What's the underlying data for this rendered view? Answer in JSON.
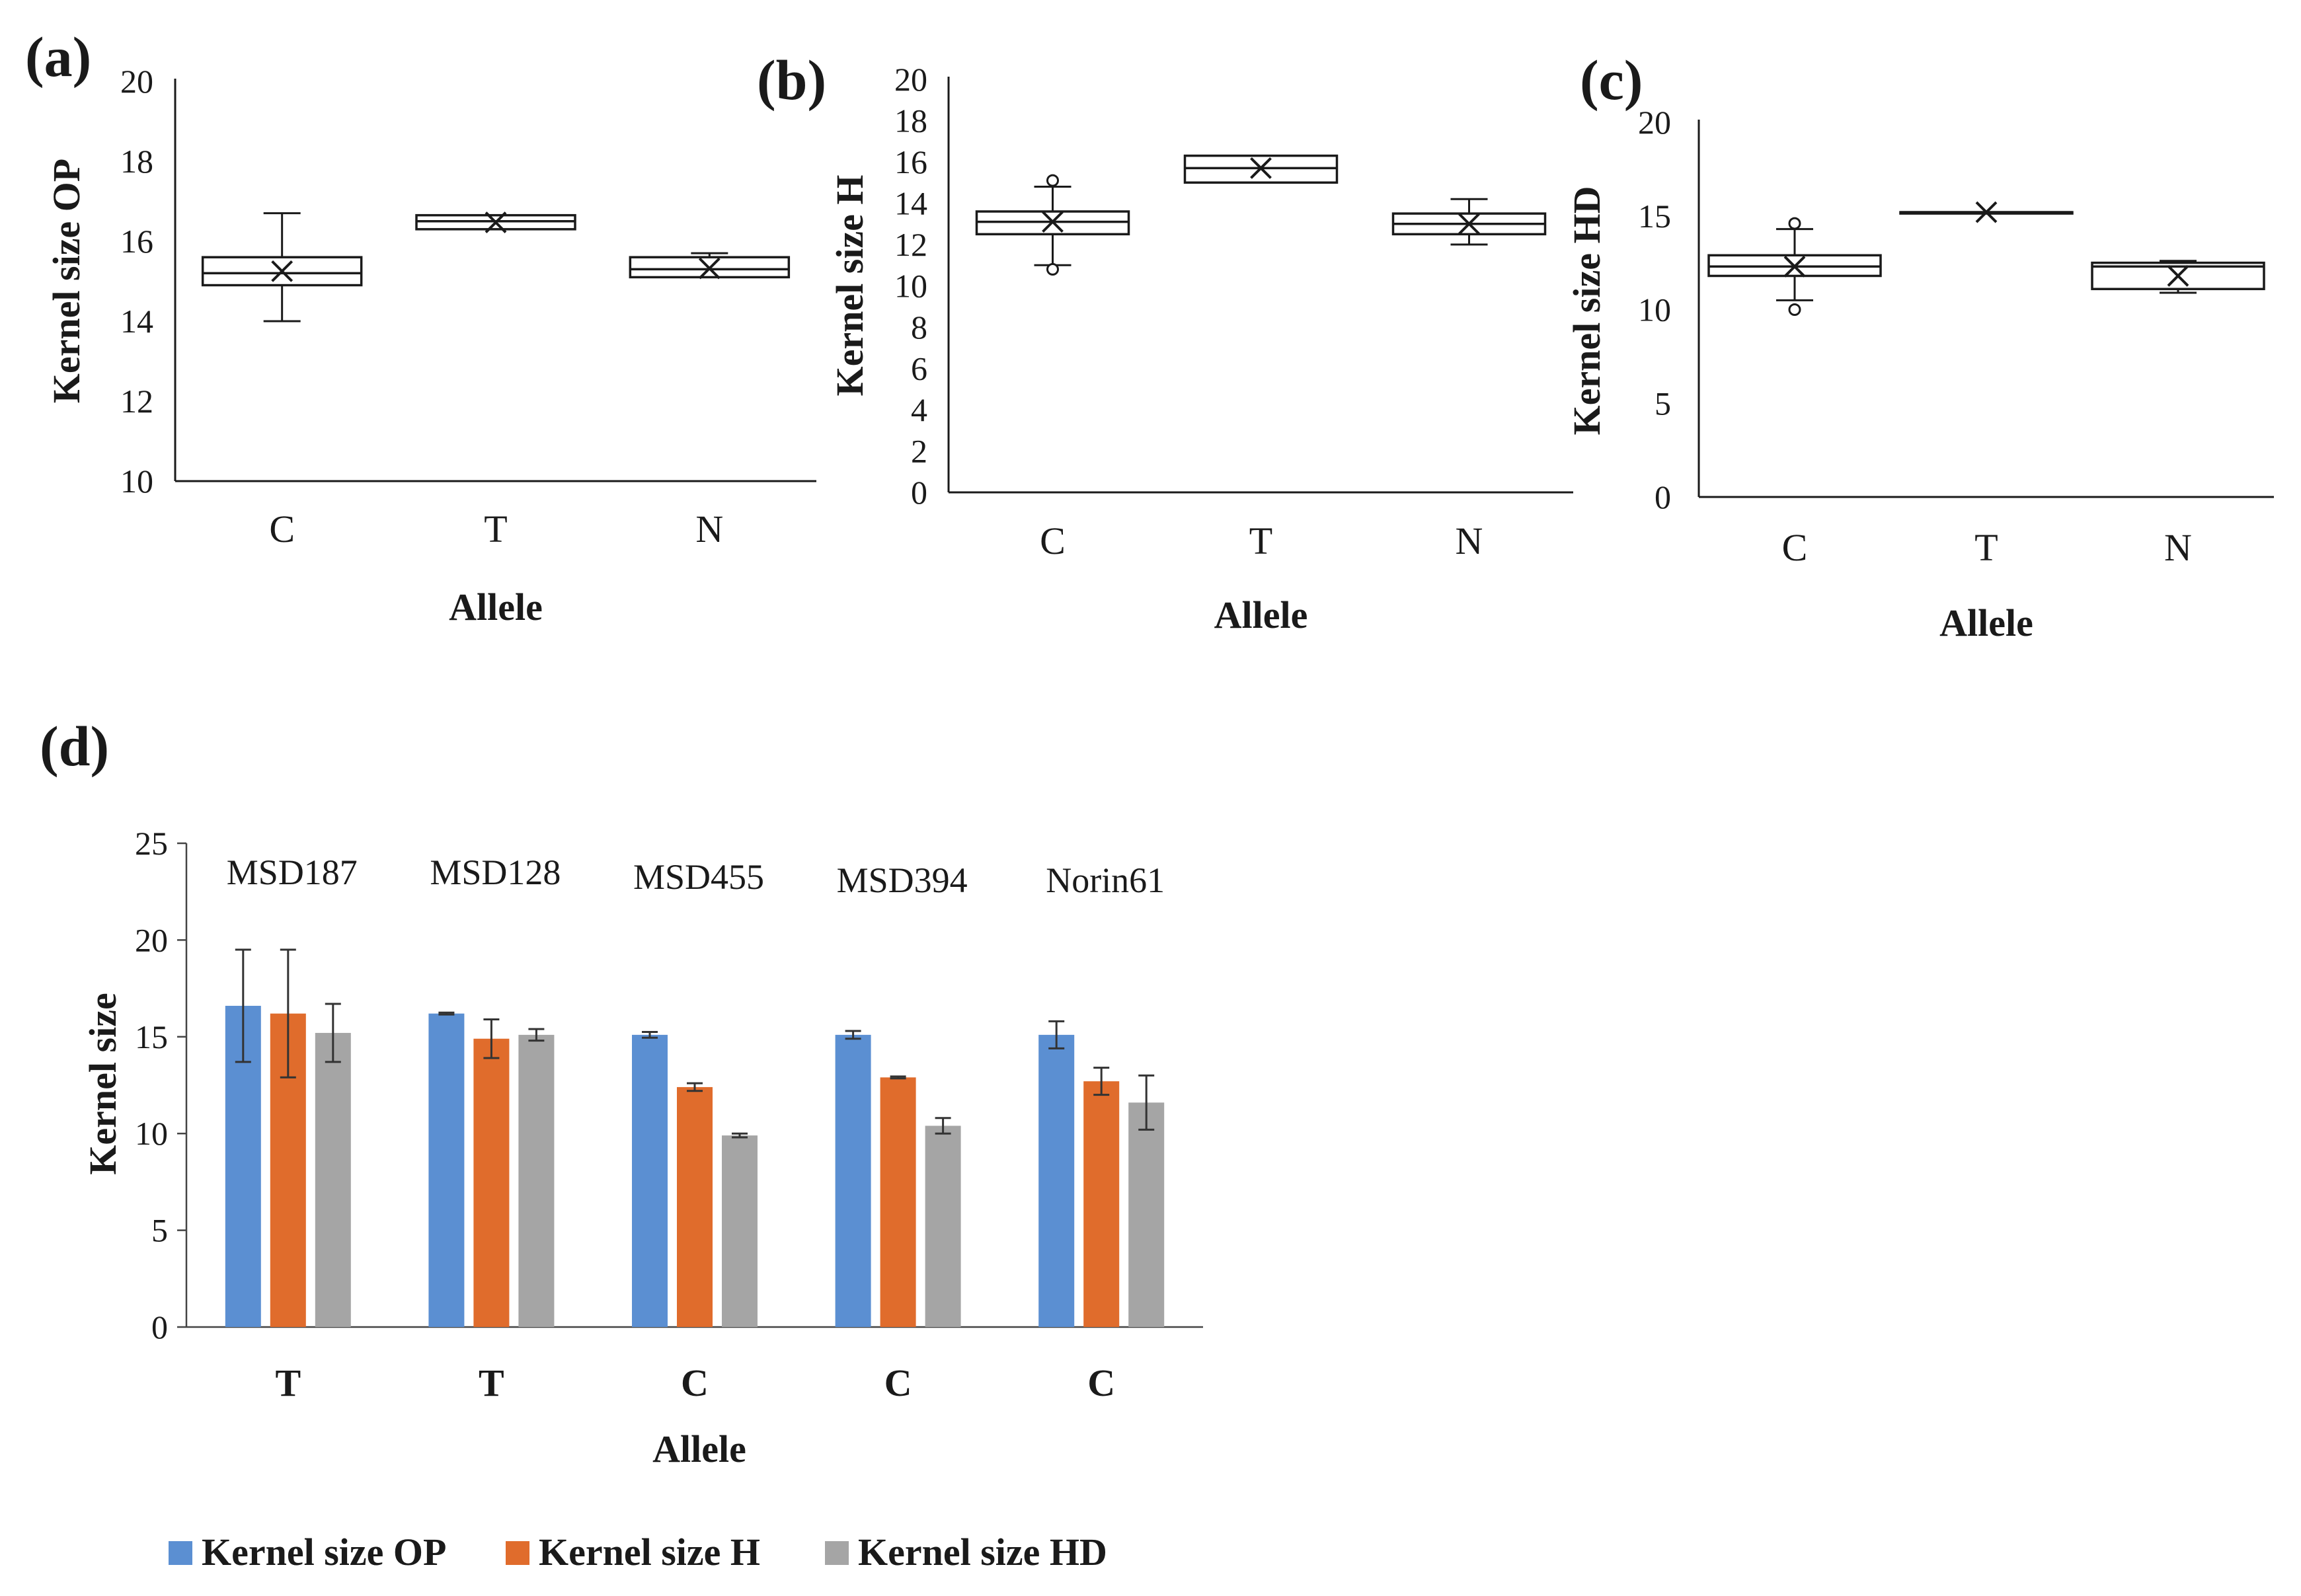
{
  "chart_data": [
    {
      "panel": "(a)",
      "type": "box",
      "ylabel": "Kernel size OP",
      "xlabel": "Allele",
      "ylim": [
        10,
        20
      ],
      "yticks": [
        10,
        12,
        14,
        16,
        18,
        20
      ],
      "categories": [
        "C",
        "T",
        "N"
      ],
      "boxes": [
        {
          "min": 14.0,
          "q1": 14.9,
          "median": 15.2,
          "q3": 15.6,
          "max": 16.7,
          "mean": 15.25,
          "outliers": []
        },
        {
          "min": 16.3,
          "q1": 16.3,
          "median": 16.5,
          "q3": 16.65,
          "max": 16.65,
          "mean": 16.47,
          "outliers": []
        },
        {
          "min": 15.1,
          "q1": 15.1,
          "median": 15.3,
          "q3": 15.6,
          "max": 15.7,
          "mean": 15.32,
          "outliers": []
        }
      ]
    },
    {
      "panel": "(b)",
      "type": "box",
      "ylabel": "Kernel size H",
      "xlabel": "Allele",
      "ylim": [
        0,
        20
      ],
      "yticks": [
        0,
        2,
        4,
        6,
        8,
        10,
        12,
        14,
        16,
        18,
        20
      ],
      "categories": [
        "C",
        "T",
        "N"
      ],
      "boxes": [
        {
          "min": 11.0,
          "q1": 12.5,
          "median": 13.1,
          "q3": 13.6,
          "max": 14.8,
          "mean": 13.1,
          "outliers": [
            10.8,
            15.1
          ]
        },
        {
          "min": 15.0,
          "q1": 15.0,
          "median": 15.7,
          "q3": 16.3,
          "max": 16.3,
          "mean": 15.7,
          "outliers": []
        },
        {
          "min": 12.0,
          "q1": 12.5,
          "median": 13.0,
          "q3": 13.5,
          "max": 14.2,
          "mean": 13.0,
          "outliers": []
        }
      ]
    },
    {
      "panel": "(c)",
      "type": "box",
      "ylabel": "Kernel size HD",
      "xlabel": "Allele",
      "ylim": [
        0,
        20
      ],
      "yticks": [
        0,
        5,
        10,
        15,
        20
      ],
      "categories": [
        "C",
        "T",
        "N"
      ],
      "boxes": [
        {
          "min": 10.5,
          "q1": 11.8,
          "median": 12.3,
          "q3": 12.9,
          "max": 14.3,
          "mean": 12.3,
          "outliers": [
            10.0,
            14.6
          ]
        },
        {
          "min": 15.2,
          "q1": 15.2,
          "median": 15.2,
          "q3": 15.2,
          "max": 15.2,
          "mean": 15.2,
          "outliers": []
        },
        {
          "min": 10.9,
          "q1": 11.1,
          "median": 12.3,
          "q3": 12.5,
          "max": 12.6,
          "mean": 11.8,
          "outliers": []
        }
      ]
    },
    {
      "panel": "(d)",
      "type": "bar",
      "ylabel": "Kernel size",
      "xlabel": "Allele",
      "ylim": [
        0,
        25
      ],
      "yticks": [
        0,
        5,
        10,
        15,
        20,
        25
      ],
      "categories": [
        "T",
        "T",
        "C",
        "C",
        "C"
      ],
      "varieties": [
        "MSD187",
        "MSD128",
        "MSD455",
        "MSD394",
        "Norin61"
      ],
      "series": [
        {
          "name": "Kernel size OP",
          "color": "#5b8fd2",
          "values": [
            16.6,
            16.2,
            15.1,
            15.1,
            15.1
          ],
          "errors": [
            2.9,
            0.05,
            0.15,
            0.2,
            0.7
          ]
        },
        {
          "name": "Kernel size H",
          "color": "#e06c2c",
          "values": [
            16.2,
            14.9,
            12.4,
            12.9,
            12.7
          ],
          "errors": [
            3.3,
            1.0,
            0.2,
            0.05,
            0.7
          ]
        },
        {
          "name": "Kernel size HD",
          "color": "#a5a5a5",
          "values": [
            15.2,
            15.1,
            9.9,
            10.4,
            11.6
          ],
          "errors": [
            1.5,
            0.3,
            0.1,
            0.4,
            1.4
          ]
        }
      ]
    }
  ]
}
